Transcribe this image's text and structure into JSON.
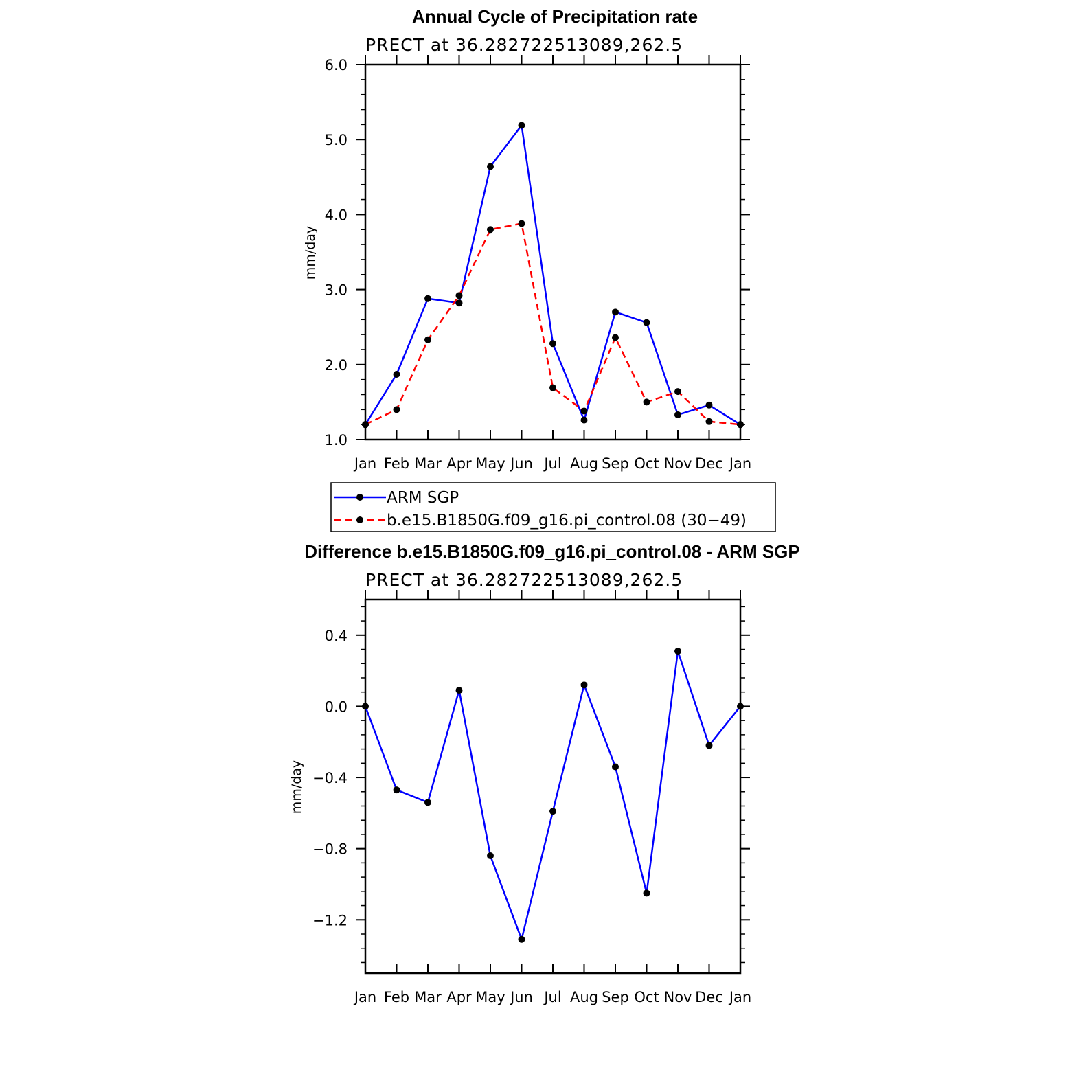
{
  "chart_data": [
    {
      "type": "line",
      "title": "Annual Cycle of Precipitation rate",
      "subtitle": "PRECT at 36.282722513089,262.5",
      "xlabel": "",
      "ylabel": "mm/day",
      "categories": [
        "Jan",
        "Feb",
        "Mar",
        "Apr",
        "May",
        "Jun",
        "Jul",
        "Aug",
        "Sep",
        "Oct",
        "Nov",
        "Dec",
        "Jan"
      ],
      "ylim": [
        1.0,
        6.0
      ],
      "yticks": [
        "1.0",
        "2.0",
        "3.0",
        "4.0",
        "5.0",
        "6.0"
      ],
      "grid": false,
      "series": [
        {
          "name": "ARM SGP",
          "color": "#0000ff",
          "dash": "solid",
          "values": [
            1.2,
            1.87,
            2.88,
            2.82,
            4.64,
            5.19,
            2.28,
            1.26,
            2.7,
            2.56,
            1.33,
            1.46,
            1.2
          ]
        },
        {
          "name": "b.e15.B1850G.f09_g16.pi_control.08 (30−49)",
          "color": "#ff0000",
          "dash": "dashed",
          "values": [
            1.2,
            1.4,
            2.33,
            2.92,
            3.8,
            3.88,
            1.69,
            1.38,
            2.36,
            1.5,
            1.64,
            1.24,
            1.2
          ]
        }
      ],
      "legend": "below"
    },
    {
      "type": "line",
      "title": "Difference b.e15.B1850G.f09_g16.pi_control.08 - ARM SGP",
      "subtitle": "PRECT at 36.282722513089,262.5",
      "xlabel": "",
      "ylabel": "mm/day",
      "categories": [
        "Jan",
        "Feb",
        "Mar",
        "Apr",
        "May",
        "Jun",
        "Jul",
        "Aug",
        "Sep",
        "Oct",
        "Nov",
        "Dec",
        "Jan"
      ],
      "ylim": [
        -1.5,
        0.6
      ],
      "yticks": [
        "−1.2",
        "−0.8",
        "−0.4",
        "0.0",
        "0.4"
      ],
      "grid": false,
      "series": [
        {
          "color": "#0000ff",
          "dash": "solid",
          "values": [
            0.0,
            -0.47,
            -0.54,
            0.09,
            -0.84,
            -1.31,
            -0.59,
            0.12,
            -0.34,
            -1.05,
            0.31,
            -0.22,
            0.0
          ]
        }
      ]
    }
  ]
}
